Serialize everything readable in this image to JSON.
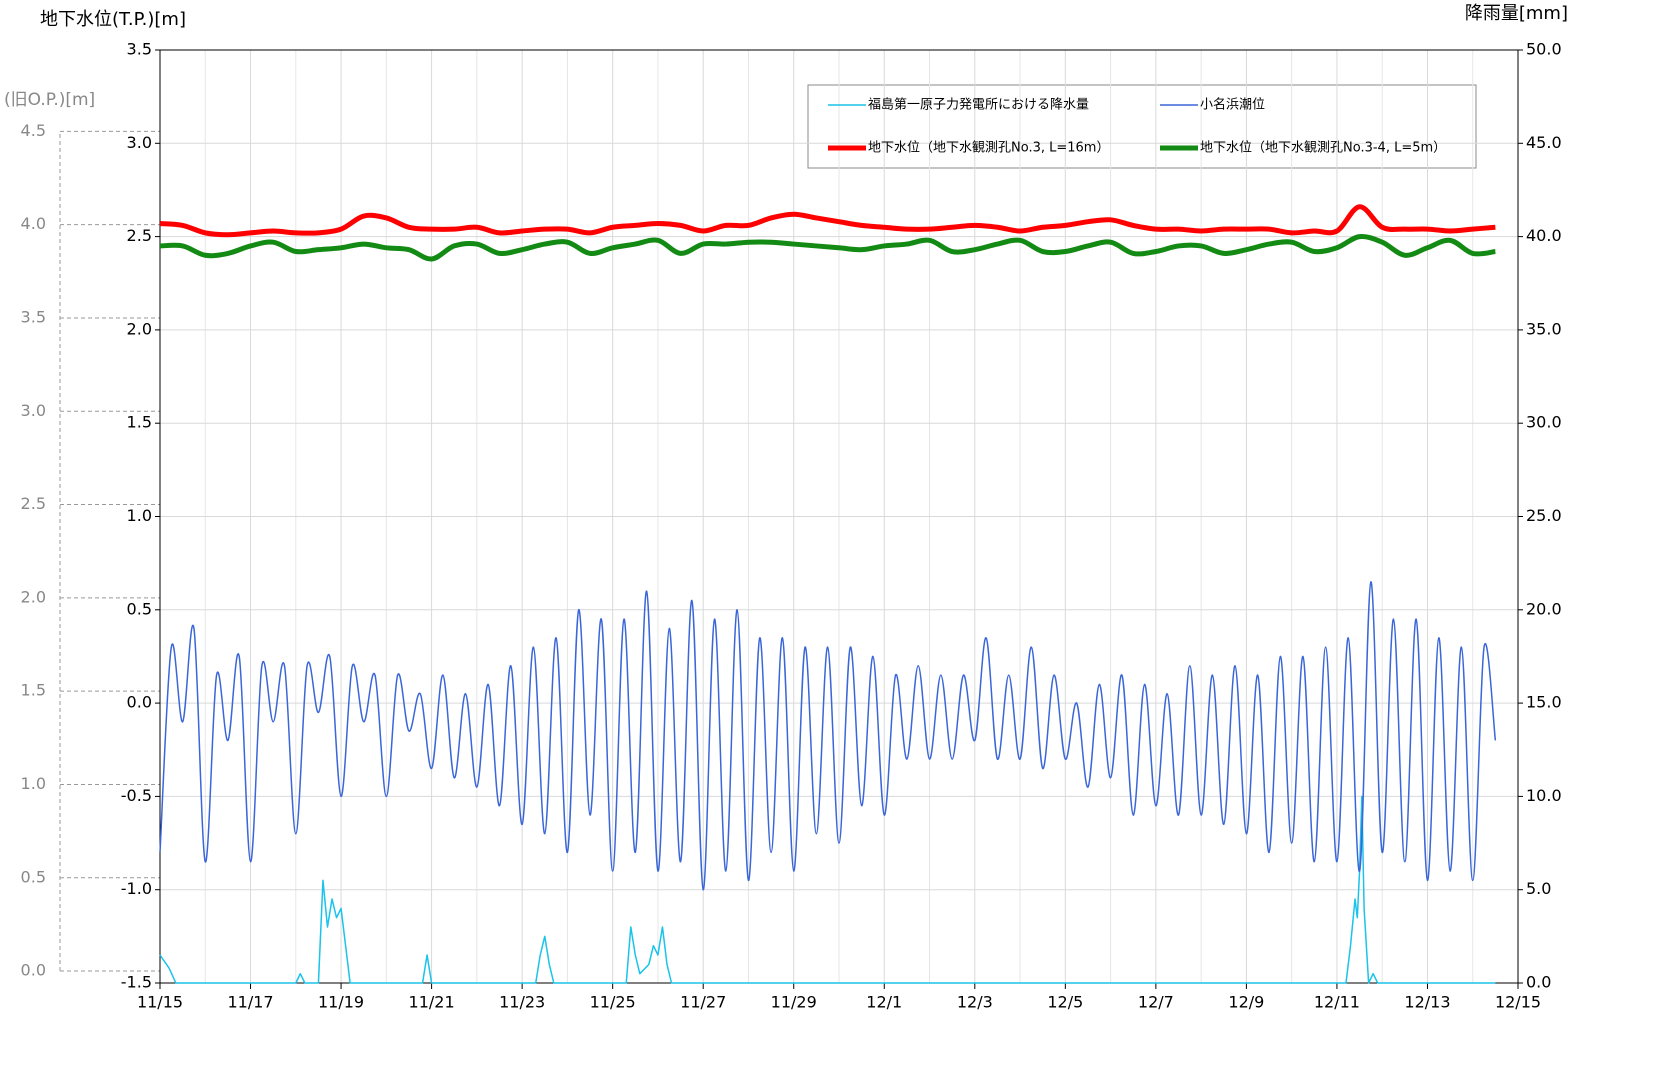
{
  "chart_data": {
    "type": "line",
    "ylabel": "地下水位(T.P.)[m]",
    "y2label": "降雨量[mm]",
    "y3label": "(旧O.P.)[m]",
    "xlim": [
      0,
      30
    ],
    "xticks": [
      {
        "value": 0,
        "label": "11/15"
      },
      {
        "value": 2,
        "label": "11/17"
      },
      {
        "value": 4,
        "label": "11/19"
      },
      {
        "value": 6,
        "label": "11/21"
      },
      {
        "value": 8,
        "label": "11/23"
      },
      {
        "value": 10,
        "label": "11/25"
      },
      {
        "value": 12,
        "label": "11/27"
      },
      {
        "value": 14,
        "label": "11/29"
      },
      {
        "value": 16,
        "label": "12/1"
      },
      {
        "value": 18,
        "label": "12/3"
      },
      {
        "value": 20,
        "label": "12/5"
      },
      {
        "value": 22,
        "label": "12/7"
      },
      {
        "value": 24,
        "label": "12/9"
      },
      {
        "value": 26,
        "label": "12/11"
      },
      {
        "value": 28,
        "label": "12/13"
      },
      {
        "value": 30,
        "label": "12/15"
      }
    ],
    "ylim": [
      -1.5,
      3.5
    ],
    "yticks": [
      {
        "value": -1.5,
        "label": "-1.5"
      },
      {
        "value": -1,
        "label": "-1.0"
      },
      {
        "value": -0.5,
        "label": "-0.5"
      },
      {
        "value": 0,
        "label": "0.0"
      },
      {
        "value": 0.5,
        "label": "0.5"
      },
      {
        "value": 1,
        "label": "1.0"
      },
      {
        "value": 1.5,
        "label": "1.5"
      },
      {
        "value": 2,
        "label": "2.0"
      },
      {
        "value": 2.5,
        "label": "2.5"
      },
      {
        "value": 3,
        "label": "3.0"
      },
      {
        "value": 3.5,
        "label": "3.5"
      }
    ],
    "y2lim": [
      0,
      50
    ],
    "y2ticks": [
      {
        "value": 0,
        "label": "0.0"
      },
      {
        "value": 5,
        "label": "5.0"
      },
      {
        "value": 10,
        "label": "10.0"
      },
      {
        "value": 15,
        "label": "15.0"
      },
      {
        "value": 20,
        "label": "20.0"
      },
      {
        "value": 25,
        "label": "25.0"
      },
      {
        "value": 30,
        "label": "30.0"
      },
      {
        "value": 35,
        "label": "35.0"
      },
      {
        "value": 40,
        "label": "40.0"
      },
      {
        "value": 45,
        "label": "45.0"
      },
      {
        "value": 50,
        "label": "50.0"
      }
    ],
    "y3lim": [
      -0.064,
      4.936
    ],
    "y3ticks": [
      {
        "value": 0,
        "label": "0.0"
      },
      {
        "value": 0.5,
        "label": "0.5"
      },
      {
        "value": 1,
        "label": "1.0"
      },
      {
        "value": 1.5,
        "label": "1.5"
      },
      {
        "value": 2,
        "label": "2.0"
      },
      {
        "value": 2.5,
        "label": "2.5"
      },
      {
        "value": 3,
        "label": "3.0"
      },
      {
        "value": 3.5,
        "label": "3.5"
      },
      {
        "value": 4,
        "label": "4.0"
      },
      {
        "value": 4.5,
        "label": "4.5"
      }
    ],
    "grid": true,
    "series": [
      {
        "name": "福島第一原子力発電所における降水量",
        "color": "#19c3ea",
        "axis": "y2",
        "width": 1.5,
        "x": [
          0,
          0.2,
          0.35,
          3.0,
          3.1,
          3.2,
          3.5,
          3.6,
          3.7,
          3.8,
          3.9,
          4.0,
          4.1,
          4.2,
          5.8,
          5.9,
          6.0,
          8.3,
          8.4,
          8.5,
          8.6,
          8.7,
          10.3,
          10.4,
          10.5,
          10.6,
          10.8,
          10.9,
          11.0,
          11.1,
          11.2,
          11.3,
          26.2,
          26.3,
          26.4,
          26.45,
          26.5,
          26.55,
          26.6,
          26.7,
          26.8,
          26.9,
          29.5
        ],
        "values": [
          1.5,
          0.8,
          0,
          0,
          0.5,
          0,
          0,
          5.5,
          3,
          4.5,
          3.5,
          4,
          2,
          0,
          0,
          1.5,
          0,
          0,
          1.5,
          2.5,
          1,
          0,
          0,
          3,
          1.5,
          0.5,
          1,
          2,
          1.5,
          3,
          1,
          0,
          0,
          2,
          4.5,
          3.5,
          6,
          10,
          4,
          0,
          0.5,
          0,
          0
        ]
      },
      {
        "name": "小名浜潮位",
        "color": "#3a66d8",
        "width": 1.5,
        "x": [
          0,
          0.25,
          0.5,
          0.75,
          1,
          1.25,
          1.5,
          1.75,
          2,
          2.25,
          2.5,
          2.75,
          3,
          3.25,
          3.5,
          3.75,
          4,
          4.25,
          4.5,
          4.75,
          5,
          5.25,
          5.5,
          5.75,
          6,
          6.25,
          6.5,
          6.75,
          7,
          7.25,
          7.5,
          7.75,
          8,
          8.25,
          8.5,
          8.75,
          9,
          9.25,
          9.5,
          9.75,
          10,
          10.25,
          10.5,
          10.75,
          11,
          11.25,
          11.5,
          11.75,
          12,
          12.25,
          12.5,
          12.75,
          13,
          13.25,
          13.5,
          13.75,
          14,
          14.25,
          14.5,
          14.75,
          15,
          15.25,
          15.5,
          15.75,
          16,
          16.25,
          16.5,
          16.75,
          17,
          17.25,
          17.5,
          17.75,
          18,
          18.25,
          18.5,
          18.75,
          19,
          19.25,
          19.5,
          19.75,
          20,
          20.25,
          20.5,
          20.75,
          21,
          21.25,
          21.5,
          21.75,
          22,
          22.25,
          22.5,
          22.75,
          23,
          23.25,
          23.5,
          23.75,
          24,
          24.25,
          24.5,
          24.75,
          25,
          25.25,
          25.5,
          25.75,
          26,
          26.25,
          26.5,
          26.75,
          27,
          27.25,
          27.5,
          27.75,
          28,
          28.25,
          28.5,
          28.75,
          29,
          29.25,
          29.5
        ],
        "values": [
          -0.8,
          0.3,
          -0.1,
          0.4,
          -0.85,
          0.15,
          -0.2,
          0.25,
          -0.85,
          0.2,
          -0.1,
          0.2,
          -0.7,
          0.2,
          -0.05,
          0.25,
          -0.5,
          0.2,
          -0.1,
          0.15,
          -0.5,
          0.15,
          -0.15,
          0.05,
          -0.35,
          0.15,
          -0.4,
          0.05,
          -0.45,
          0.1,
          -0.55,
          0.2,
          -0.65,
          0.3,
          -0.7,
          0.35,
          -0.8,
          0.5,
          -0.6,
          0.45,
          -0.9,
          0.45,
          -0.8,
          0.6,
          -0.9,
          0.4,
          -0.85,
          0.55,
          -1.0,
          0.45,
          -0.9,
          0.5,
          -0.95,
          0.35,
          -0.8,
          0.35,
          -0.9,
          0.3,
          -0.7,
          0.3,
          -0.75,
          0.3,
          -0.55,
          0.25,
          -0.6,
          0.15,
          -0.3,
          0.2,
          -0.3,
          0.15,
          -0.3,
          0.15,
          -0.2,
          0.35,
          -0.3,
          0.15,
          -0.3,
          0.3,
          -0.35,
          0.15,
          -0.3,
          0.0,
          -0.45,
          0.1,
          -0.4,
          0.15,
          -0.6,
          0.1,
          -0.55,
          0.05,
          -0.6,
          0.2,
          -0.6,
          0.15,
          -0.65,
          0.2,
          -0.7,
          0.15,
          -0.8,
          0.25,
          -0.75,
          0.25,
          -0.85,
          0.3,
          -0.85,
          0.35,
          -0.9,
          0.65,
          -0.8,
          0.45,
          -0.85,
          0.45,
          -0.95,
          0.35,
          -0.9,
          0.3,
          -0.95,
          0.3,
          -0.2
        ]
      },
      {
        "name": "地下水位（地下水観測孔No.3, L=16m）",
        "color": "#ff0000",
        "width": 5,
        "x": [
          0,
          0.5,
          1,
          1.5,
          2,
          2.5,
          3,
          3.5,
          4,
          4.5,
          5,
          5.5,
          6,
          6.5,
          7,
          7.5,
          8,
          8.5,
          9,
          9.5,
          10,
          10.5,
          11,
          11.5,
          12,
          12.5,
          13,
          13.5,
          14,
          14.5,
          15,
          15.5,
          16,
          16.5,
          17,
          17.5,
          18,
          18.5,
          19,
          19.5,
          20,
          20.5,
          21,
          21.5,
          22,
          22.5,
          23,
          23.5,
          24,
          24.5,
          25,
          25.5,
          26,
          26.5,
          27,
          27.5,
          28,
          28.5,
          29,
          29.5
        ],
        "values": [
          2.57,
          2.56,
          2.52,
          2.51,
          2.52,
          2.53,
          2.52,
          2.52,
          2.54,
          2.61,
          2.6,
          2.55,
          2.54,
          2.54,
          2.55,
          2.52,
          2.53,
          2.54,
          2.54,
          2.52,
          2.55,
          2.56,
          2.57,
          2.56,
          2.53,
          2.56,
          2.56,
          2.6,
          2.62,
          2.6,
          2.58,
          2.56,
          2.55,
          2.54,
          2.54,
          2.55,
          2.56,
          2.55,
          2.53,
          2.55,
          2.56,
          2.58,
          2.59,
          2.56,
          2.54,
          2.54,
          2.53,
          2.54,
          2.54,
          2.54,
          2.52,
          2.53,
          2.53,
          2.66,
          2.55,
          2.54,
          2.54,
          2.53,
          2.54,
          2.55
        ]
      },
      {
        "name": "地下水位（地下水観測孔No.3-4, L=5m）",
        "color": "#138a13",
        "width": 5,
        "x": [
          0,
          0.5,
          1,
          1.5,
          2,
          2.5,
          3,
          3.5,
          4,
          4.5,
          5,
          5.5,
          6,
          6.5,
          7,
          7.5,
          8,
          8.5,
          9,
          9.5,
          10,
          10.5,
          11,
          11.5,
          12,
          12.5,
          13,
          13.5,
          14,
          14.5,
          15,
          15.5,
          16,
          16.5,
          17,
          17.5,
          18,
          18.5,
          19,
          19.5,
          20,
          20.5,
          21,
          21.5,
          22,
          22.5,
          23,
          23.5,
          24,
          24.5,
          25,
          25.5,
          26,
          26.5,
          27,
          27.5,
          28,
          28.5,
          29,
          29.5
        ],
        "values": [
          2.45,
          2.45,
          2.4,
          2.41,
          2.45,
          2.47,
          2.42,
          2.43,
          2.44,
          2.46,
          2.44,
          2.43,
          2.38,
          2.45,
          2.46,
          2.41,
          2.43,
          2.46,
          2.47,
          2.41,
          2.44,
          2.46,
          2.48,
          2.41,
          2.46,
          2.46,
          2.47,
          2.47,
          2.46,
          2.45,
          2.44,
          2.43,
          2.45,
          2.46,
          2.48,
          2.42,
          2.43,
          2.46,
          2.48,
          2.42,
          2.42,
          2.45,
          2.47,
          2.41,
          2.42,
          2.45,
          2.45,
          2.41,
          2.43,
          2.46,
          2.47,
          2.42,
          2.44,
          2.5,
          2.47,
          2.4,
          2.44,
          2.48,
          2.41,
          2.42
        ]
      }
    ]
  }
}
